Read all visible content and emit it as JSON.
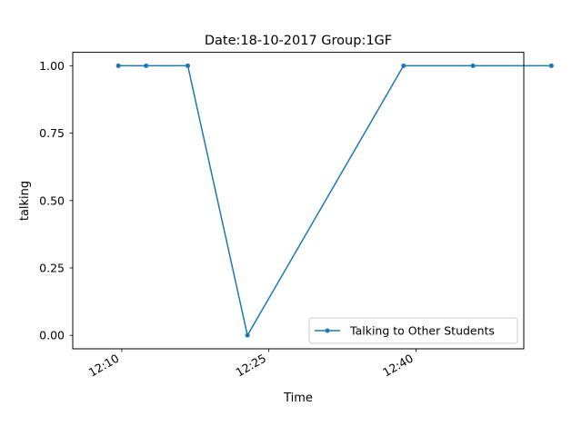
{
  "chart_data": {
    "type": "line",
    "title": "Date:18-10-2017  Group:1GF",
    "xlabel": "Time",
    "ylabel": "talking",
    "x_ticks": [
      "12:10",
      "12:25",
      "12:40"
    ],
    "x_tick_minutes": [
      730,
      745,
      760
    ],
    "y_ticks": [
      "0.00",
      "0.25",
      "0.50",
      "0.75",
      "1.00"
    ],
    "y_tick_values": [
      0,
      0.25,
      0.5,
      0.75,
      1.0
    ],
    "xlim": [
      "12:05",
      "12:51"
    ],
    "ylim": [
      -0.05,
      1.05
    ],
    "grid": false,
    "legend_position": "lower-right",
    "series": [
      {
        "name": "Talking to Other Students",
        "color": "#1f77b4",
        "marker": "dot",
        "x": [
          "12:09:39",
          "12:12:29",
          "12:16:44",
          "12:22:49",
          "12:38:44",
          "12:45:49",
          "12:53:49"
        ],
        "y": [
          1,
          1,
          1,
          0,
          1,
          1,
          1
        ]
      }
    ]
  }
}
